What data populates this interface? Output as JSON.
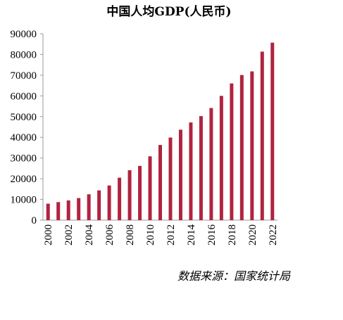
{
  "chart_data": {
    "type": "bar",
    "title": "中国人均GDP(人民币)",
    "xlabel": "",
    "ylabel": "",
    "ylim": [
      0,
      90000
    ],
    "yticks": [
      0,
      10000,
      20000,
      30000,
      40000,
      50000,
      60000,
      70000,
      80000,
      90000
    ],
    "categories": [
      "2000",
      "2001",
      "2002",
      "2003",
      "2004",
      "2005",
      "2006",
      "2007",
      "2008",
      "2009",
      "2010",
      "2011",
      "2012",
      "2013",
      "2014",
      "2015",
      "2016",
      "2017",
      "2018",
      "2019",
      "2020",
      "2021",
      "2022"
    ],
    "xtick_labels_shown": [
      "2000",
      "2002",
      "2004",
      "2006",
      "2008",
      "2010",
      "2012",
      "2014",
      "2016",
      "2018",
      "2020",
      "2022"
    ],
    "values": [
      7942,
      8717,
      9506,
      10666,
      12487,
      14368,
      16738,
      20494,
      24100,
      26180,
      30808,
      36302,
      39874,
      43684,
      47173,
      50237,
      54139,
      60014,
      66006,
      70078,
      71828,
      81370,
      85698
    ],
    "bar_color": "#B0243F",
    "grid": false,
    "legend": "none",
    "source": "数据来源：国家统计局"
  }
}
